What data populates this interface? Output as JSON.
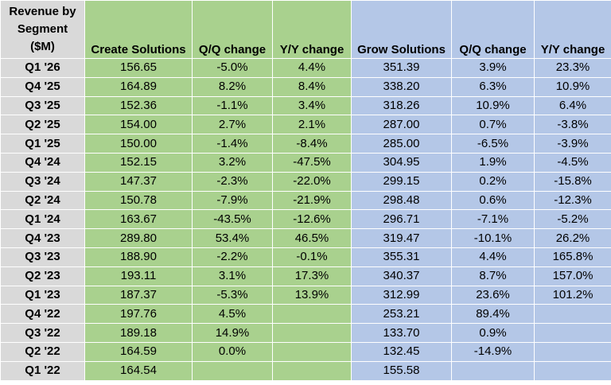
{
  "table": {
    "corner_header": [
      "Revenue by",
      "Segment",
      "($M)"
    ],
    "headers": [
      "Create Solutions",
      "Q/Q change",
      "Y/Y change",
      "Grow Solutions",
      "Q/Q change",
      "Y/Y change"
    ],
    "rows": [
      {
        "quarter": "Q1 '26",
        "cs": "156.65",
        "cs_qq": "-5.0%",
        "cs_yy": "4.4%",
        "gs": "351.39",
        "gs_qq": "3.9%",
        "gs_yy": "23.3%"
      },
      {
        "quarter": "Q4 '25",
        "cs": "164.89",
        "cs_qq": "8.2%",
        "cs_yy": "8.4%",
        "gs": "338.20",
        "gs_qq": "6.3%",
        "gs_yy": "10.9%"
      },
      {
        "quarter": "Q3 '25",
        "cs": "152.36",
        "cs_qq": "-1.1%",
        "cs_yy": "3.4%",
        "gs": "318.26",
        "gs_qq": "10.9%",
        "gs_yy": "6.4%"
      },
      {
        "quarter": "Q2 '25",
        "cs": "154.00",
        "cs_qq": "2.7%",
        "cs_yy": "2.1%",
        "gs": "287.00",
        "gs_qq": "0.7%",
        "gs_yy": "-3.8%"
      },
      {
        "quarter": "Q1 '25",
        "cs": "150.00",
        "cs_qq": "-1.4%",
        "cs_yy": "-8.4%",
        "gs": "285.00",
        "gs_qq": "-6.5%",
        "gs_yy": "-3.9%"
      },
      {
        "quarter": "Q4 '24",
        "cs": "152.15",
        "cs_qq": "3.2%",
        "cs_yy": "-47.5%",
        "gs": "304.95",
        "gs_qq": "1.9%",
        "gs_yy": "-4.5%"
      },
      {
        "quarter": "Q3 '24",
        "cs": "147.37",
        "cs_qq": "-2.3%",
        "cs_yy": "-22.0%",
        "gs": "299.15",
        "gs_qq": "0.2%",
        "gs_yy": "-15.8%"
      },
      {
        "quarter": "Q2 '24",
        "cs": "150.78",
        "cs_qq": "-7.9%",
        "cs_yy": "-21.9%",
        "gs": "298.48",
        "gs_qq": "0.6%",
        "gs_yy": "-12.3%"
      },
      {
        "quarter": "Q1 '24",
        "cs": "163.67",
        "cs_qq": "-43.5%",
        "cs_yy": "-12.6%",
        "gs": "296.71",
        "gs_qq": "-7.1%",
        "gs_yy": "-5.2%"
      },
      {
        "quarter": "Q4 '23",
        "cs": "289.80",
        "cs_qq": "53.4%",
        "cs_yy": "46.5%",
        "gs": "319.47",
        "gs_qq": "-10.1%",
        "gs_yy": "26.2%"
      },
      {
        "quarter": "Q3 '23",
        "cs": "188.90",
        "cs_qq": "-2.2%",
        "cs_yy": "-0.1%",
        "gs": "355.31",
        "gs_qq": "4.4%",
        "gs_yy": "165.8%"
      },
      {
        "quarter": "Q2 '23",
        "cs": "193.11",
        "cs_qq": "3.1%",
        "cs_yy": "17.3%",
        "gs": "340.37",
        "gs_qq": "8.7%",
        "gs_yy": "157.0%"
      },
      {
        "quarter": "Q1 '23",
        "cs": "187.37",
        "cs_qq": "-5.3%",
        "cs_yy": "13.9%",
        "gs": "312.99",
        "gs_qq": "23.6%",
        "gs_yy": "101.2%"
      },
      {
        "quarter": "Q4 '22",
        "cs": "197.76",
        "cs_qq": "4.5%",
        "cs_yy": "",
        "gs": "253.21",
        "gs_qq": "89.4%",
        "gs_yy": ""
      },
      {
        "quarter": "Q3 '22",
        "cs": "189.18",
        "cs_qq": "14.9%",
        "cs_yy": "",
        "gs": "133.70",
        "gs_qq": "0.9%",
        "gs_yy": ""
      },
      {
        "quarter": "Q2 '22",
        "cs": "164.59",
        "cs_qq": "0.0%",
        "cs_yy": "",
        "gs": "132.45",
        "gs_qq": "-14.9%",
        "gs_yy": ""
      },
      {
        "quarter": "Q1 '22",
        "cs": "164.54",
        "cs_qq": "",
        "cs_yy": "",
        "gs": "155.58",
        "gs_qq": "",
        "gs_yy": ""
      }
    ]
  },
  "colors": {
    "label_bg": "#d9d9d9",
    "create_bg": "#a9d18e",
    "grow_bg": "#b4c7e7"
  },
  "chart_data": {
    "type": "table",
    "columns": [
      "Revenue by Segment ($M)",
      "Create Solutions",
      "Q/Q change",
      "Y/Y change",
      "Grow Solutions",
      "Q/Q change",
      "Y/Y change"
    ],
    "rows": [
      [
        "Q1 '26",
        156.65,
        "-5.0%",
        "4.4%",
        351.39,
        "3.9%",
        "23.3%"
      ],
      [
        "Q4 '25",
        164.89,
        "8.2%",
        "8.4%",
        338.2,
        "6.3%",
        "10.9%"
      ],
      [
        "Q3 '25",
        152.36,
        "-1.1%",
        "3.4%",
        318.26,
        "10.9%",
        "6.4%"
      ],
      [
        "Q2 '25",
        154.0,
        "2.7%",
        "2.1%",
        287.0,
        "0.7%",
        "-3.8%"
      ],
      [
        "Q1 '25",
        150.0,
        "-1.4%",
        "-8.4%",
        285.0,
        "-6.5%",
        "-3.9%"
      ],
      [
        "Q4 '24",
        152.15,
        "3.2%",
        "-47.5%",
        304.95,
        "1.9%",
        "-4.5%"
      ],
      [
        "Q3 '24",
        147.37,
        "-2.3%",
        "-22.0%",
        299.15,
        "0.2%",
        "-15.8%"
      ],
      [
        "Q2 '24",
        150.78,
        "-7.9%",
        "-21.9%",
        298.48,
        "0.6%",
        "-12.3%"
      ],
      [
        "Q1 '24",
        163.67,
        "-43.5%",
        "-12.6%",
        296.71,
        "-7.1%",
        "-5.2%"
      ],
      [
        "Q4 '23",
        289.8,
        "53.4%",
        "46.5%",
        319.47,
        "-10.1%",
        "26.2%"
      ],
      [
        "Q3 '23",
        188.9,
        "-2.2%",
        "-0.1%",
        355.31,
        "4.4%",
        "165.8%"
      ],
      [
        "Q2 '23",
        193.11,
        "3.1%",
        "17.3%",
        340.37,
        "8.7%",
        "157.0%"
      ],
      [
        "Q1 '23",
        187.37,
        "-5.3%",
        "13.9%",
        312.99,
        "23.6%",
        "101.2%"
      ],
      [
        "Q4 '22",
        197.76,
        "4.5%",
        "",
        253.21,
        "89.4%",
        ""
      ],
      [
        "Q3 '22",
        189.18,
        "14.9%",
        "",
        133.7,
        "0.9%",
        ""
      ],
      [
        "Q2 '22",
        164.59,
        "0.0%",
        "",
        132.45,
        "-14.9%",
        ""
      ],
      [
        "Q1 '22",
        164.54,
        "",
        "",
        155.58,
        "",
        ""
      ]
    ]
  }
}
